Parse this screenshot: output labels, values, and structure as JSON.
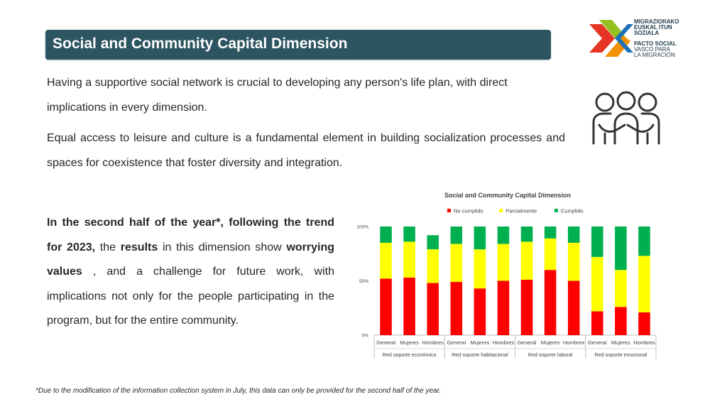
{
  "header": {
    "title": "Social and Community Capital Dimension"
  },
  "logo": {
    "lines_bold": [
      "MIGRAZIORAKO",
      "EUSKAL ITUN",
      "SOZIALA",
      "PACTO SOCIAL"
    ],
    "lines_light": [
      "VASCO PARA",
      "LA MIGRACIÓN"
    ]
  },
  "intro": {
    "p1": "Having a supportive social network is crucial to developing any person's life plan, with direct implications in every dimension.",
    "p2": "Equal access to leisure and culture is a fundamental element in building socialization processes and spaces for coexistence that foster diversity and integration."
  },
  "icons": {
    "people": "people-hugging-icon"
  },
  "summary": {
    "b1": "In the second half of the year*, following the trend for 2023,",
    "t1": " the ",
    "b2": "results",
    "t2": " in this dimension show ",
    "b3": "worrying values",
    "t3": " , and a challenge for future work, with implications not only for the people participating in the program, but for the entire community."
  },
  "footnote": "*Due to the modification of the information collection system in July, this data can only be provided for the second half of the year.",
  "chart_data": {
    "type": "bar",
    "stacked": true,
    "percent": true,
    "title": "Social and Community Capital Dimension",
    "legend_position": "top",
    "grid": false,
    "ylim": [
      0,
      100
    ],
    "yticks": [
      "0%",
      "50%",
      "100%"
    ],
    "groups": [
      "Red soporte económico",
      "Red soporte habitacional",
      "Red soporte laboral",
      "Red soporte emocional"
    ],
    "categories": [
      "General",
      "Mujeres",
      "Hombres",
      "General",
      "Mujeres",
      "Hombres",
      "General",
      "Mujeres",
      "Hombres",
      "General",
      "Mujeres",
      "Hombres"
    ],
    "series": [
      {
        "name": "No cumplido",
        "color": "#ff0000",
        "values": [
          52,
          53,
          48,
          49,
          43,
          50,
          51,
          60,
          50,
          22,
          26,
          21
        ]
      },
      {
        "name": "Parcialmente",
        "color": "#ffff00",
        "values": [
          33,
          33,
          31,
          35,
          36,
          34,
          35,
          29,
          35,
          50,
          34,
          52
        ]
      },
      {
        "name": "Cumplido",
        "color": "#00b050",
        "values": [
          15,
          14,
          13,
          16,
          21,
          16,
          14,
          11,
          15,
          28,
          40,
          27
        ]
      }
    ]
  }
}
